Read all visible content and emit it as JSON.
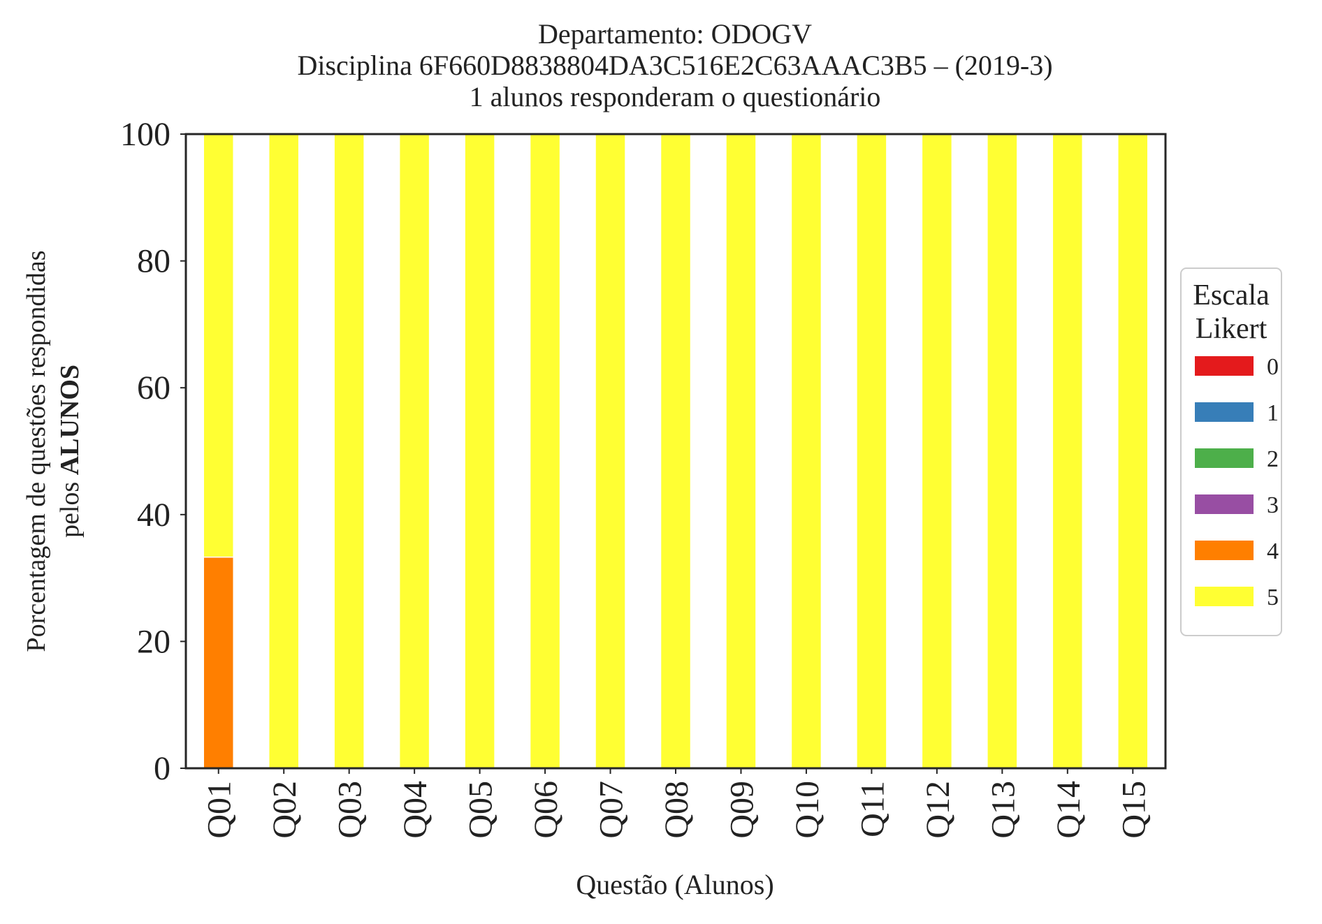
{
  "chart_data": {
    "type": "bar",
    "stacked": true,
    "title": [
      "Departamento: ODOGV",
      "Disciplina 6F660D8838804DA3C516E2C63AAAC3B5 – (2019-3)",
      "1 alunos responderam o questionário"
    ],
    "xlabel": "Questão (Alunos)",
    "ylabel_line1": "Porcentagem de questões respondidas",
    "ylabel_line2_prefix": "pelos ",
    "ylabel_line2_bold": "ALUNOS",
    "ylim": [
      0,
      100
    ],
    "yticks": [
      0,
      20,
      40,
      60,
      80,
      100
    ],
    "categories": [
      "Q01",
      "Q02",
      "Q03",
      "Q04",
      "Q05",
      "Q06",
      "Q07",
      "Q08",
      "Q09",
      "Q10",
      "Q11",
      "Q12",
      "Q13",
      "Q14",
      "Q15"
    ],
    "legend": {
      "title_line1": "Escala",
      "title_line2": "Likert",
      "placement": "right-center"
    },
    "series": [
      {
        "name": "0",
        "color": "#e41a1c",
        "values": [
          0,
          0,
          0,
          0,
          0,
          0,
          0,
          0,
          0,
          0,
          0,
          0,
          0,
          0,
          0
        ]
      },
      {
        "name": "1",
        "color": "#377eb8",
        "values": [
          0,
          0,
          0,
          0,
          0,
          0,
          0,
          0,
          0,
          0,
          0,
          0,
          0,
          0,
          0
        ]
      },
      {
        "name": "2",
        "color": "#4daf4a",
        "values": [
          0,
          0,
          0,
          0,
          0,
          0,
          0,
          0,
          0,
          0,
          0,
          0,
          0,
          0,
          0
        ]
      },
      {
        "name": "3",
        "color": "#984ea3",
        "values": [
          0,
          0,
          0,
          0,
          0,
          0,
          0,
          0,
          0,
          0,
          0,
          0,
          0,
          0,
          0
        ]
      },
      {
        "name": "4",
        "color": "#ff7f00",
        "values": [
          33.3,
          0,
          0,
          0,
          0,
          0,
          0,
          0,
          0,
          0,
          0,
          0,
          0,
          0,
          0
        ]
      },
      {
        "name": "5",
        "color": "#ffff33",
        "values": [
          66.7,
          100,
          100,
          100,
          100,
          100,
          100,
          100,
          100,
          100,
          100,
          100,
          100,
          100,
          100
        ]
      }
    ],
    "grid": false
  }
}
